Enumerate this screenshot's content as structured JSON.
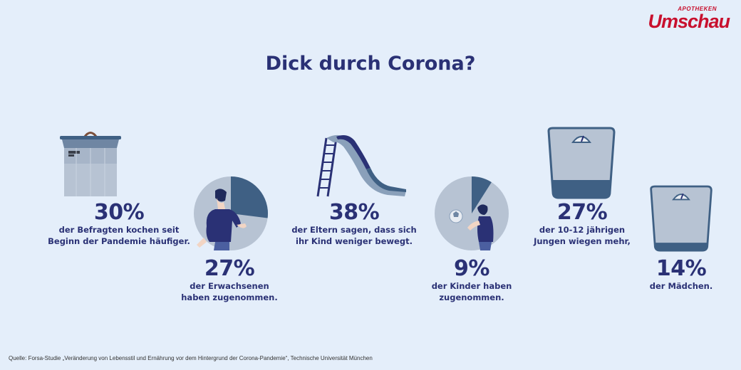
{
  "brand": {
    "small": "APOTHEKEN",
    "big": "Umschau"
  },
  "title": "Dick durch Corona?",
  "stats": [
    {
      "pct": "30%",
      "line1": "der Befragten kochen seit",
      "line2": "Beginn der Pandemie häufiger.",
      "icon": "cooking-pot-icon"
    },
    {
      "pct": "27%",
      "line1": "der Erwachsenen",
      "line2": "haben zugenommen.",
      "icon": "adult-pie-icon",
      "fraction": 0.27
    },
    {
      "pct": "38%",
      "line1": "der Eltern sagen, dass sich",
      "line2": "ihr Kind weniger bewegt.",
      "icon": "slide-icon"
    },
    {
      "pct": "9%",
      "line1": "der Kinder haben",
      "line2": "zugenommen.",
      "icon": "child-pie-icon",
      "fraction": 0.09
    },
    {
      "pct": "27%",
      "line1": "der 10-12 jährigen",
      "line2": "Jungen wiegen mehr,",
      "icon": "scale-icon",
      "fraction": 0.27
    },
    {
      "pct": "14%",
      "line1": "der Mädchen.",
      "line2": "",
      "icon": "scale-icon",
      "fraction": 0.14
    }
  ],
  "source": "Quelle: Forsa-Studie „Veränderung von Lebensstil und Ernährung vor dem Hintergrund der Corona-Pandemie“, Technische Universität München",
  "colors": {
    "background": "#e4eefa",
    "navy": "#2a3175",
    "steel": "#3f6084",
    "grey": "#b7c3d3",
    "brand_red": "#c8102e"
  }
}
